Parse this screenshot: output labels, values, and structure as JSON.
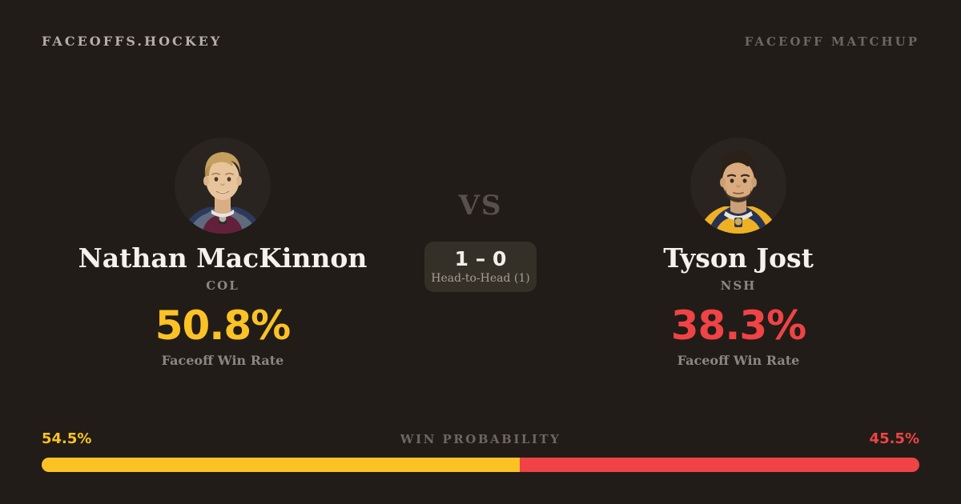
{
  "header": {
    "brand": "FACEOFFS.HOCKEY",
    "page_label": "FACEOFF MATCHUP"
  },
  "players": {
    "left": {
      "name": "Nathan MacKinnon",
      "team": "COL",
      "win_rate": "50.8%",
      "win_rate_label": "Faceoff Win Rate",
      "accent_color": "#fbc226",
      "photo": "mackinnon-headshot"
    },
    "right": {
      "name": "Tyson Jost",
      "team": "NSH",
      "win_rate": "38.3%",
      "win_rate_label": "Faceoff Win Rate",
      "accent_color": "#ef4345",
      "photo": "jost-headshot"
    }
  },
  "center": {
    "vs_label": "VS",
    "head_to_head_score": "1 – 0",
    "head_to_head_label": "Head-to-Head (1)"
  },
  "win_probability": {
    "title": "WIN PROBABILITY",
    "left_pct_label": "54.5%",
    "right_pct_label": "45.5%",
    "left_value": 54.5,
    "right_value": 45.5,
    "left_color": "#fbc226",
    "right_color": "#ef4345"
  },
  "colors": {
    "background": "#211c18",
    "text_primary": "#f6f1ea",
    "text_muted": "#8d8680",
    "text_faint": "#6e6660",
    "box_background": "#343028"
  },
  "chart_data": {
    "type": "bar",
    "title": "WIN PROBABILITY",
    "categories": [
      "Nathan MacKinnon (COL)",
      "Tyson Jost (NSH)"
    ],
    "values": [
      54.5,
      45.5
    ],
    "ylim": [
      0,
      100
    ],
    "orientation": "horizontal-stacked",
    "colors": [
      "#fbc226",
      "#ef4345"
    ]
  }
}
